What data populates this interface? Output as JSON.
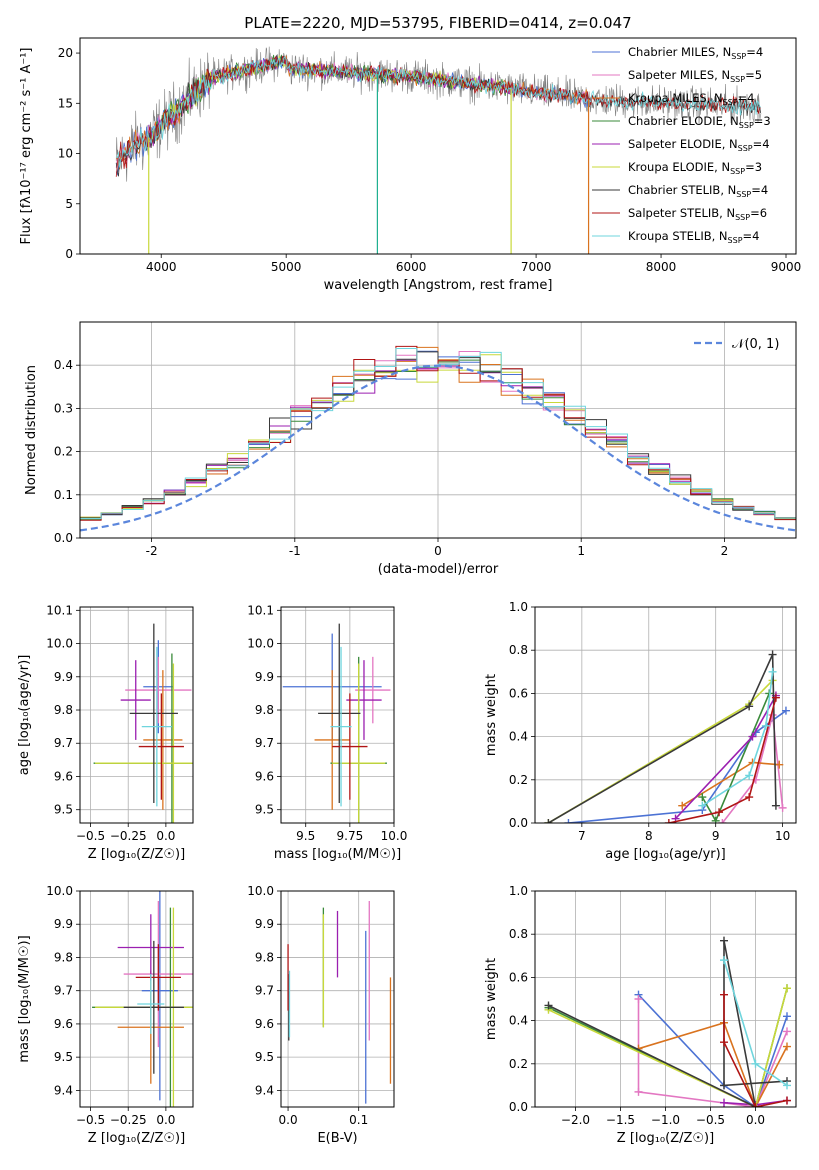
{
  "figure_title": "PLATE=2220, MJD=53795, FIBERID=0414, z=0.047",
  "chart_data": [
    {
      "id": "spectrum",
      "type": "line",
      "title": "PLATE=2220, MJD=53795, FIBERID=0414, z=0.047",
      "xlabel": "wavelength [Angstrom, rest frame]",
      "ylabel": "Flux [fλ10⁻¹⁷ erg cm⁻² s⁻¹ A⁻¹]",
      "xlim": [
        3350,
        9080
      ],
      "ylim": [
        0,
        21.5
      ],
      "xticks": [
        4000,
        5000,
        6000,
        7000,
        8000,
        9000
      ],
      "yticks": [
        0,
        5,
        10,
        15,
        20
      ],
      "grid": false,
      "legend_position": "top-right",
      "observed": {
        "color": "#7f7f7f",
        "x_range": [
          3640,
          8800
        ]
      },
      "series": [
        {
          "name": "Chabrier MILES, N",
          "sub": "SSP",
          "suffix": "=4",
          "color": "#4c72d4",
          "x_range": [
            3640,
            7420
          ]
        },
        {
          "name": "Salpeter MILES, N",
          "sub": "SSP",
          "suffix": "=5",
          "color": "#e377c2",
          "x_range": [
            3640,
            7420
          ]
        },
        {
          "name": "Kroupa MILES, N",
          "sub": "SSP",
          "suffix": "=4",
          "color": "#d9731f",
          "x_range": [
            3640,
            7420
          ]
        },
        {
          "name": "Chabrier ELODIE, N",
          "sub": "SSP",
          "suffix": "=3",
          "color": "#3a8a3a",
          "x_range": [
            3900,
            6800
          ]
        },
        {
          "name": "Salpeter ELODIE, N",
          "sub": "SSP",
          "suffix": "=4",
          "color": "#9b1fb0",
          "x_range": [
            3900,
            6800
          ]
        },
        {
          "name": "Kroupa ELODIE, N",
          "sub": "SSP",
          "suffix": "=3",
          "color": "#c8d83a",
          "x_range": [
            3900,
            6800
          ]
        },
        {
          "name": "Chabrier STELIB, N",
          "sub": "SSP",
          "suffix": "=4",
          "color": "#3a3a3a",
          "x_range": [
            3640,
            8800
          ]
        },
        {
          "name": "Salpeter STELIB, N",
          "sub": "SSP",
          "suffix": "=6",
          "color": "#b01515",
          "x_range": [
            3640,
            8800
          ]
        },
        {
          "name": "Kroupa STELIB, N",
          "sub": "SSP",
          "suffix": "=4",
          "color": "#6fd5dd",
          "x_range": [
            3640,
            8800
          ]
        }
      ],
      "dips": [
        {
          "x": 3900,
          "color": "#c8d83a"
        },
        {
          "x": 5730,
          "color": "#20b090"
        },
        {
          "x": 6800,
          "color": "#c8d83a"
        },
        {
          "x": 7420,
          "color": "#d9731f"
        }
      ]
    },
    {
      "id": "residuals",
      "type": "step",
      "xlabel": "(data-model)/error",
      "ylabel": "Normed distribution",
      "xlim": [
        -2.5,
        2.5
      ],
      "ylim": [
        0,
        0.5
      ],
      "xticks": [
        -2,
        -1,
        0,
        1,
        2
      ],
      "yticks": [
        0.0,
        0.1,
        0.2,
        0.3,
        0.4
      ],
      "grid": true,
      "legend": {
        "label": "𝒩(0, 1)",
        "color": "#5b86dc",
        "position": "top-right"
      },
      "bins": 34,
      "series_colors": [
        "#4c72d4",
        "#e377c2",
        "#d9731f",
        "#3a8a3a",
        "#9b1fb0",
        "#c8d83a",
        "#3a3a3a",
        "#b01515",
        "#6fd5dd"
      ]
    },
    {
      "id": "age-vs-z",
      "type": "errorbar",
      "xlabel": "Z [log₁₀(Z/Z☉)]",
      "ylabel": "age  [log₁₀(age/yr)]",
      "xlim": [
        -0.57,
        0.18
      ],
      "ylim": [
        9.46,
        10.11
      ],
      "xticks": [
        -0.5,
        -0.25,
        0.0
      ],
      "xticklabels": [
        "−0.5",
        "−0.25",
        "0.0"
      ],
      "yticks": [
        9.5,
        9.6,
        9.7,
        9.8,
        9.9,
        10.0,
        10.1
      ],
      "grid": true,
      "points": [
        {
          "x": -0.05,
          "y": 9.87,
          "xerr": 0.1,
          "yerr": 0.14,
          "color": "#4c72d4"
        },
        {
          "x": -0.05,
          "y": 9.86,
          "xerr": 0.22,
          "yerr": 0.1,
          "color": "#e377c2"
        },
        {
          "x": -0.02,
          "y": 9.71,
          "xerr": 0.13,
          "yerr": 0.21,
          "color": "#d9731f"
        },
        {
          "x": 0.04,
          "y": 9.64,
          "xerr": 0.52,
          "yerr": 0.33,
          "color": "#3a8a3a"
        },
        {
          "x": -0.2,
          "y": 9.83,
          "xerr": 0.1,
          "yerr": 0.12,
          "color": "#9b1fb0"
        },
        {
          "x": 0.05,
          "y": 9.64,
          "xerr": 0.52,
          "yerr": 0.3,
          "color": "#c8d83a"
        },
        {
          "x": -0.08,
          "y": 9.79,
          "xerr": 0.16,
          "yerr": 0.27,
          "color": "#3a3a3a"
        },
        {
          "x": -0.03,
          "y": 9.69,
          "xerr": 0.15,
          "yerr": 0.16,
          "color": "#b01515"
        },
        {
          "x": -0.06,
          "y": 9.75,
          "xerr": 0.1,
          "yerr": 0.24,
          "color": "#6fd5dd"
        }
      ]
    },
    {
      "id": "age-vs-mass",
      "type": "errorbar",
      "xlabel": "mass [log₁₀(M/M☉)]",
      "ylabel": "",
      "xlim": [
        9.36,
        10.0
      ],
      "ylim": [
        9.46,
        10.11
      ],
      "xticks": [
        9.5,
        9.75,
        10.0
      ],
      "xticklabels": [
        "9.5",
        "9.75",
        "10.0"
      ],
      "yticks": [
        9.5,
        9.6,
        9.7,
        9.8,
        9.9,
        10.0,
        10.1
      ],
      "grid": true,
      "points": [
        {
          "x": 9.65,
          "y": 9.87,
          "xerr": 0.28,
          "yerr": 0.16,
          "color": "#4c72d4"
        },
        {
          "x": 9.88,
          "y": 9.86,
          "xerr": 0.1,
          "yerr": 0.1,
          "color": "#e377c2"
        },
        {
          "x": 9.65,
          "y": 9.71,
          "xerr": 0.1,
          "yerr": 0.21,
          "color": "#d9731f"
        },
        {
          "x": 9.8,
          "y": 9.64,
          "xerr": 0.16,
          "yerr": 0.32,
          "color": "#3a8a3a"
        },
        {
          "x": 9.83,
          "y": 9.83,
          "xerr": 0.1,
          "yerr": 0.12,
          "color": "#9b1fb0"
        },
        {
          "x": 9.8,
          "y": 9.64,
          "xerr": 0.15,
          "yerr": 0.3,
          "color": "#c8d83a"
        },
        {
          "x": 9.69,
          "y": 9.79,
          "xerr": 0.12,
          "yerr": 0.27,
          "color": "#3a3a3a"
        },
        {
          "x": 9.75,
          "y": 9.69,
          "xerr": 0.1,
          "yerr": 0.16,
          "color": "#b01515"
        },
        {
          "x": 9.7,
          "y": 9.75,
          "xerr": 0.06,
          "yerr": 0.24,
          "color": "#6fd5dd"
        }
      ]
    },
    {
      "id": "weight-vs-age",
      "type": "line",
      "xlabel": "age  [log₁₀(age/yr)]",
      "ylabel": "mass weight",
      "xlim": [
        6.3,
        10.2
      ],
      "ylim": [
        0,
        1.0
      ],
      "xticks": [
        7,
        8,
        9,
        10
      ],
      "yticks": [
        0.0,
        0.2,
        0.4,
        0.6,
        0.8,
        1.0
      ],
      "grid": true,
      "series": [
        {
          "color": "#4c72d4",
          "points": [
            [
              6.8,
              0.0
            ],
            [
              8.8,
              0.06
            ],
            [
              9.6,
              0.42
            ],
            [
              10.05,
              0.52
            ]
          ]
        },
        {
          "color": "#e377c2",
          "points": [
            [
              9.1,
              0.0
            ],
            [
              9.6,
              0.2
            ],
            [
              9.85,
              0.5
            ],
            [
              10.0,
              0.07
            ]
          ]
        },
        {
          "color": "#d9731f",
          "points": [
            [
              8.5,
              0.08
            ],
            [
              9.55,
              0.28
            ],
            [
              9.95,
              0.27
            ]
          ]
        },
        {
          "color": "#3a8a3a",
          "points": [
            [
              8.8,
              0.12
            ],
            [
              9.0,
              0.01
            ],
            [
              9.8,
              0.6
            ]
          ]
        },
        {
          "color": "#9b1fb0",
          "points": [
            [
              8.4,
              0.02
            ],
            [
              9.55,
              0.4
            ],
            [
              9.9,
              0.59
            ]
          ]
        },
        {
          "color": "#c8d83a",
          "points": [
            [
              6.5,
              0.0
            ],
            [
              9.5,
              0.55
            ],
            [
              9.85,
              0.66
            ]
          ]
        },
        {
          "color": "#3a3a3a",
          "points": [
            [
              6.5,
              0.0
            ],
            [
              9.5,
              0.54
            ],
            [
              9.85,
              0.78
            ],
            [
              9.9,
              0.08
            ]
          ]
        },
        {
          "color": "#b01515",
          "points": [
            [
              8.3,
              0.0
            ],
            [
              9.05,
              0.05
            ],
            [
              9.5,
              0.12
            ],
            [
              9.9,
              0.58
            ]
          ]
        },
        {
          "color": "#6fd5dd",
          "points": [
            [
              8.8,
              0.08
            ],
            [
              9.5,
              0.22
            ],
            [
              9.75,
              0.45
            ],
            [
              9.85,
              0.7
            ]
          ]
        }
      ]
    },
    {
      "id": "mass-vs-z",
      "type": "errorbar",
      "xlabel": "Z [log₁₀(Z/Z☉)]",
      "ylabel": "mass [log₁₀(M/M☉)]",
      "xlim": [
        -0.57,
        0.18
      ],
      "ylim": [
        9.35,
        10.0
      ],
      "xticks": [
        -0.5,
        -0.25,
        0.0
      ],
      "xticklabels": [
        "−0.5",
        "−0.25",
        "0.0"
      ],
      "yticks": [
        9.4,
        9.5,
        9.6,
        9.7,
        9.8,
        9.9,
        10.0
      ],
      "grid": true,
      "points": [
        {
          "x": -0.04,
          "y": 9.7,
          "xerr": 0.12,
          "yerr": 0.33,
          "color": "#4c72d4"
        },
        {
          "x": -0.05,
          "y": 9.75,
          "xerr": 0.23,
          "yerr": 0.22,
          "color": "#e377c2"
        },
        {
          "x": -0.1,
          "y": 9.59,
          "xerr": 0.22,
          "yerr": 0.17,
          "color": "#d9731f"
        },
        {
          "x": 0.03,
          "y": 9.65,
          "xerr": 0.52,
          "yerr": 0.3,
          "color": "#3a8a3a"
        },
        {
          "x": -0.1,
          "y": 9.83,
          "xerr": 0.22,
          "yerr": 0.1,
          "color": "#9b1fb0"
        },
        {
          "x": 0.05,
          "y": 9.65,
          "xerr": 0.52,
          "yerr": 0.3,
          "color": "#c8d83a"
        },
        {
          "x": -0.08,
          "y": 9.65,
          "xerr": 0.2,
          "yerr": 0.2,
          "color": "#3a3a3a"
        },
        {
          "x": -0.05,
          "y": 9.74,
          "xerr": 0.15,
          "yerr": 0.1,
          "color": "#b01515"
        },
        {
          "x": -0.1,
          "y": 9.66,
          "xerr": 0.09,
          "yerr": 0.09,
          "color": "#6fd5dd"
        }
      ]
    },
    {
      "id": "mass-vs-ebv",
      "type": "errorbar",
      "xlabel": "E(B-V)",
      "ylabel": "",
      "xlim": [
        -0.01,
        0.15
      ],
      "ylim": [
        9.35,
        10.0
      ],
      "xticks": [
        0.0,
        0.1
      ],
      "xticklabels": [
        "0.0",
        "0.1"
      ],
      "yticks": [
        9.4,
        9.5,
        9.6,
        9.7,
        9.8,
        9.9,
        10.0
      ],
      "grid": true,
      "points": [
        {
          "x": 0.11,
          "y": 9.62,
          "xerr": 0.0,
          "yerr": 0.26,
          "color": "#4c72d4"
        },
        {
          "x": 0.115,
          "y": 9.76,
          "xerr": 0.0,
          "yerr": 0.21,
          "color": "#e377c2"
        },
        {
          "x": 0.145,
          "y": 9.58,
          "xerr": 0.0,
          "yerr": 0.16,
          "color": "#d9731f"
        },
        {
          "x": 0.05,
          "y": 9.77,
          "xerr": 0.0,
          "yerr": 0.18,
          "color": "#3a8a3a"
        },
        {
          "x": 0.07,
          "y": 9.84,
          "xerr": 0.0,
          "yerr": 0.1,
          "color": "#9b1fb0"
        },
        {
          "x": 0.05,
          "y": 9.76,
          "xerr": 0.0,
          "yerr": 0.17,
          "color": "#c8d83a"
        },
        {
          "x": 0.001,
          "y": 9.65,
          "xerr": 0.0,
          "yerr": 0.1,
          "color": "#3a3a3a"
        },
        {
          "x": 0.0,
          "y": 9.74,
          "xerr": 0.0,
          "yerr": 0.1,
          "color": "#b01515"
        },
        {
          "x": 0.002,
          "y": 9.66,
          "xerr": 0.0,
          "yerr": 0.1,
          "color": "#6fd5dd"
        }
      ]
    },
    {
      "id": "weight-vs-z",
      "type": "line",
      "xlabel": "Z [log₁₀(Z/Z☉)]",
      "ylabel": "mass weight",
      "xlim": [
        -2.45,
        0.45
      ],
      "ylim": [
        0,
        1.0
      ],
      "xticks": [
        -2.0,
        -1.5,
        -1.0,
        -0.5,
        0.0
      ],
      "xticklabels": [
        "−2.0",
        "−1.5",
        "−1.0",
        "−0.5",
        "0.0"
      ],
      "yticks": [
        0.0,
        0.2,
        0.4,
        0.6,
        0.8,
        1.0
      ],
      "grid": true,
      "series": [
        {
          "color": "#4c72d4",
          "points": [
            [
              -1.3,
              0.52
            ],
            [
              -0.35,
              0.1
            ],
            [
              0.0,
              0.0
            ],
            [
              0.35,
              0.42
            ]
          ]
        },
        {
          "color": "#e377c2",
          "points": [
            [
              -1.3,
              0.5
            ],
            [
              -1.3,
              0.07
            ],
            [
              0.0,
              0.0
            ],
            [
              0.35,
              0.35
            ]
          ]
        },
        {
          "color": "#d9731f",
          "points": [
            [
              -1.3,
              0.27
            ],
            [
              -0.35,
              0.39
            ],
            [
              0.0,
              0.0
            ],
            [
              0.35,
              0.28
            ]
          ]
        },
        {
          "color": "#3a8a3a",
          "points": [
            [
              -2.3,
              0.46
            ],
            [
              0.0,
              0.0
            ],
            [
              0.35,
              0.55
            ]
          ]
        },
        {
          "color": "#9b1fb0",
          "points": [
            [
              -0.35,
              0.02
            ],
            [
              0.0,
              0.01
            ],
            [
              0.35,
              0.03
            ]
          ]
        },
        {
          "color": "#c8d83a",
          "points": [
            [
              -2.3,
              0.45
            ],
            [
              0.0,
              0.0
            ],
            [
              0.35,
              0.55
            ]
          ]
        },
        {
          "color": "#3a3a3a",
          "points": [
            [
              -2.3,
              0.47
            ],
            [
              0.0,
              0.0
            ],
            [
              -0.35,
              0.77
            ],
            [
              -0.35,
              0.1
            ],
            [
              0.35,
              0.12
            ]
          ]
        },
        {
          "color": "#b01515",
          "points": [
            [
              -0.35,
              0.52
            ],
            [
              -0.35,
              0.3
            ],
            [
              0.0,
              0.0
            ],
            [
              0.35,
              0.03
            ]
          ]
        },
        {
          "color": "#6fd5dd",
          "points": [
            [
              -0.35,
              0.68
            ],
            [
              0.0,
              0.2
            ],
            [
              0.35,
              0.1
            ]
          ]
        }
      ]
    }
  ]
}
